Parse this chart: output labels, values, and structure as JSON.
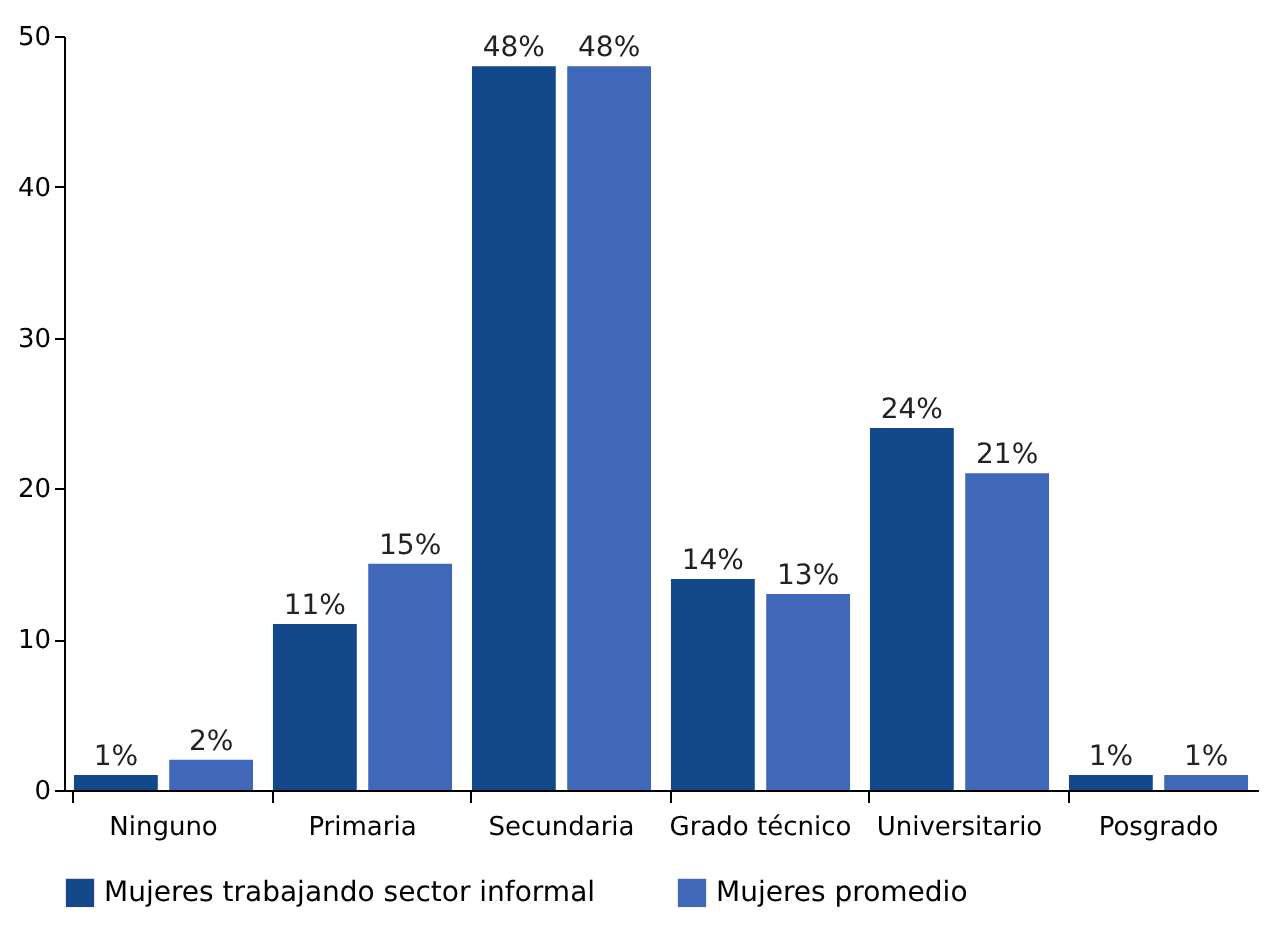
{
  "chart_data": {
    "type": "bar",
    "categories": [
      "Ninguno",
      "Primaria",
      "Secundaria",
      "Grado técnico",
      "Universitario",
      "Posgrado"
    ],
    "series": [
      {
        "name": "Mujeres trabajando sector informal",
        "color": "#13498a",
        "values": [
          1,
          11,
          48,
          14,
          24,
          1
        ],
        "value_labels": [
          "1%",
          "11%",
          "48%",
          "14%",
          "24%",
          "1%"
        ]
      },
      {
        "name": "Mujeres promedio",
        "color": "#4167b8",
        "values": [
          2,
          15,
          48,
          13,
          21,
          1
        ],
        "value_labels": [
          "2%",
          "15%",
          "48%",
          "13%",
          "21%",
          "1%"
        ]
      }
    ],
    "ylim": [
      0,
      50
    ],
    "yticks": [
      0,
      10,
      20,
      30,
      40,
      50
    ],
    "grid": false,
    "legend": "bottom"
  }
}
